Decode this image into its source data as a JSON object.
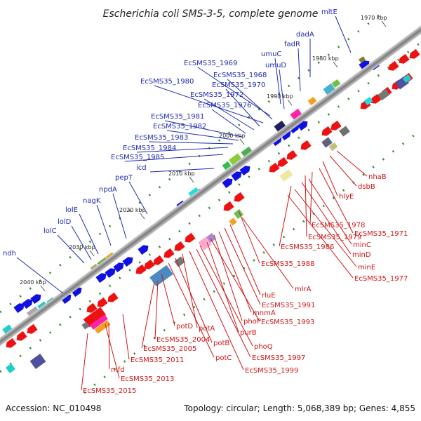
{
  "title": "Escherichia coli SMS-3-5, complete genome",
  "accession": "Accession: NC_010498",
  "summary": "Topology: circular; Length: 5,068,389 bp; Genes: 4,855",
  "colors": {
    "backbone": "#888888",
    "tick": "#2d8a2d",
    "forward_label": "#1f2bb0",
    "reverse_label": "#d21515",
    "forward_gene": "#1010e0",
    "reverse_gene": "#ee1111"
  },
  "kbp_ticks": [
    "1970 kbp",
    "1980 kbp",
    "1990 kbp",
    "2000 kbp",
    "2010 kbp",
    "2020 kbp",
    "2030 kbp",
    "2040 kbp"
  ],
  "forward_gene_labels": [
    "mltE",
    "dadA",
    "fadR",
    "umuC",
    "umuD",
    "EcSMS35_1969",
    "EcSMS35_1968",
    "EcSMS35_1980",
    "EcSMS35_1970",
    "EcSMS35_1972",
    "EcSMS35_1976",
    "EcSMS35_1981",
    "EcSMS35_1982",
    "EcSMS35_1983",
    "EcSMS35_1984",
    "EcSMS35_1985",
    "icd",
    "pepT",
    "npdA",
    "nagK",
    "lolE",
    "lolD",
    "lolC",
    "ndh"
  ],
  "reverse_gene_labels": [
    "nhaB",
    "dsbB",
    "hlyE",
    "EcSMS35_1971",
    "EcSMS35_1978",
    "EcSMS35_1979",
    "minC",
    "minD",
    "EcSMS35_1986",
    "minE",
    "EcSMS35_1977",
    "EcSMS35_1988",
    "mlrA",
    "rluE",
    "EcSMS35_1991",
    "mnmA",
    "phoP",
    "EcSMS35_1993",
    "purB",
    "phoQ",
    "EcSMS35_1997",
    "EcSMS35_1999",
    "potA",
    "potB",
    "potC",
    "potD",
    "EcSMS35_2004",
    "EcSMS35_2005",
    "EcSMS35_2011",
    "mfd",
    "EcSMS35_2013",
    "EcSMS35_2015"
  ]
}
